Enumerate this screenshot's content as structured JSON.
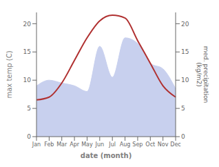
{
  "chart_data": {
    "type": "line",
    "xlabel": "date (month)",
    "ylabel": "max temp (C)",
    "y2label": "med. precipitation\n(kg/m2)",
    "categories": [
      "Jan",
      "Feb",
      "Mar",
      "Apr",
      "May",
      "Jun",
      "Jul",
      "Aug",
      "Sep",
      "Oct",
      "Nov",
      "Dec"
    ],
    "series": [
      {
        "type": "area",
        "axis": "y2",
        "color": "#c8d0ee",
        "values": [
          9.0,
          10.0,
          9.5,
          9.0,
          8.0,
          16.0,
          10.5,
          17.5,
          16.5,
          13.0,
          12.0,
          8.5
        ]
      },
      {
        "type": "line",
        "color": "#b03030",
        "values": [
          6.5,
          7.0,
          9.5,
          13.5,
          17.5,
          20.5,
          21.5,
          21.0,
          17.0,
          13.0,
          9.0,
          7.0
        ]
      }
    ],
    "ylim": [
      0,
      22
    ],
    "yticks": [
      0,
      5,
      10,
      15,
      20
    ],
    "y2lim": [
      0,
      22
    ],
    "y2ticks": [
      0,
      5,
      10,
      15,
      20
    ],
    "grid": false
  }
}
